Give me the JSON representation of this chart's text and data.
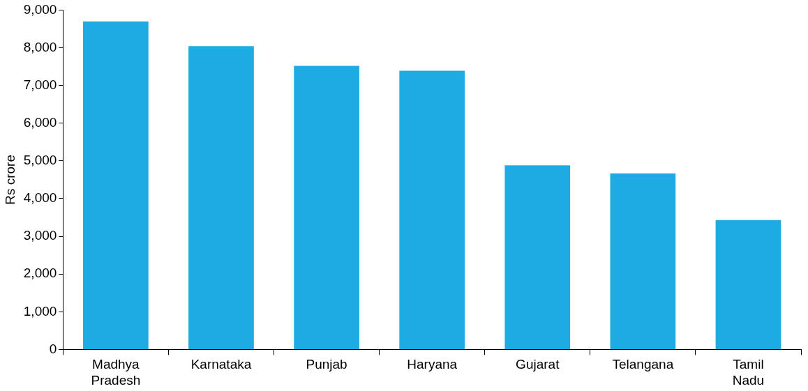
{
  "chart_data": {
    "type": "bar",
    "ylabel": "Rs crore",
    "categories": [
      "Madhya Pradesh",
      "Karnataka",
      "Punjab",
      "Haryana",
      "Gujarat",
      "Telangana",
      "Tamil Nadu"
    ],
    "values": [
      8700,
      8040,
      7520,
      7390,
      4880,
      4670,
      3430
    ],
    "color": "#1eaae2",
    "ylim": [
      0,
      9000
    ],
    "yticks": [
      {
        "value": 0,
        "label": "0"
      },
      {
        "value": 1000,
        "label": "1,000"
      },
      {
        "value": 2000,
        "label": "2,000"
      },
      {
        "value": 3000,
        "label": "3,000"
      },
      {
        "value": 4000,
        "label": "4,000"
      },
      {
        "value": 5000,
        "label": "5,000"
      },
      {
        "value": 6000,
        "label": "6,000"
      },
      {
        "value": 7000,
        "label": "7,000"
      },
      {
        "value": 8000,
        "label": "8,000"
      },
      {
        "value": 9000,
        "label": "9,000"
      }
    ],
    "grid": false,
    "legend": false
  }
}
